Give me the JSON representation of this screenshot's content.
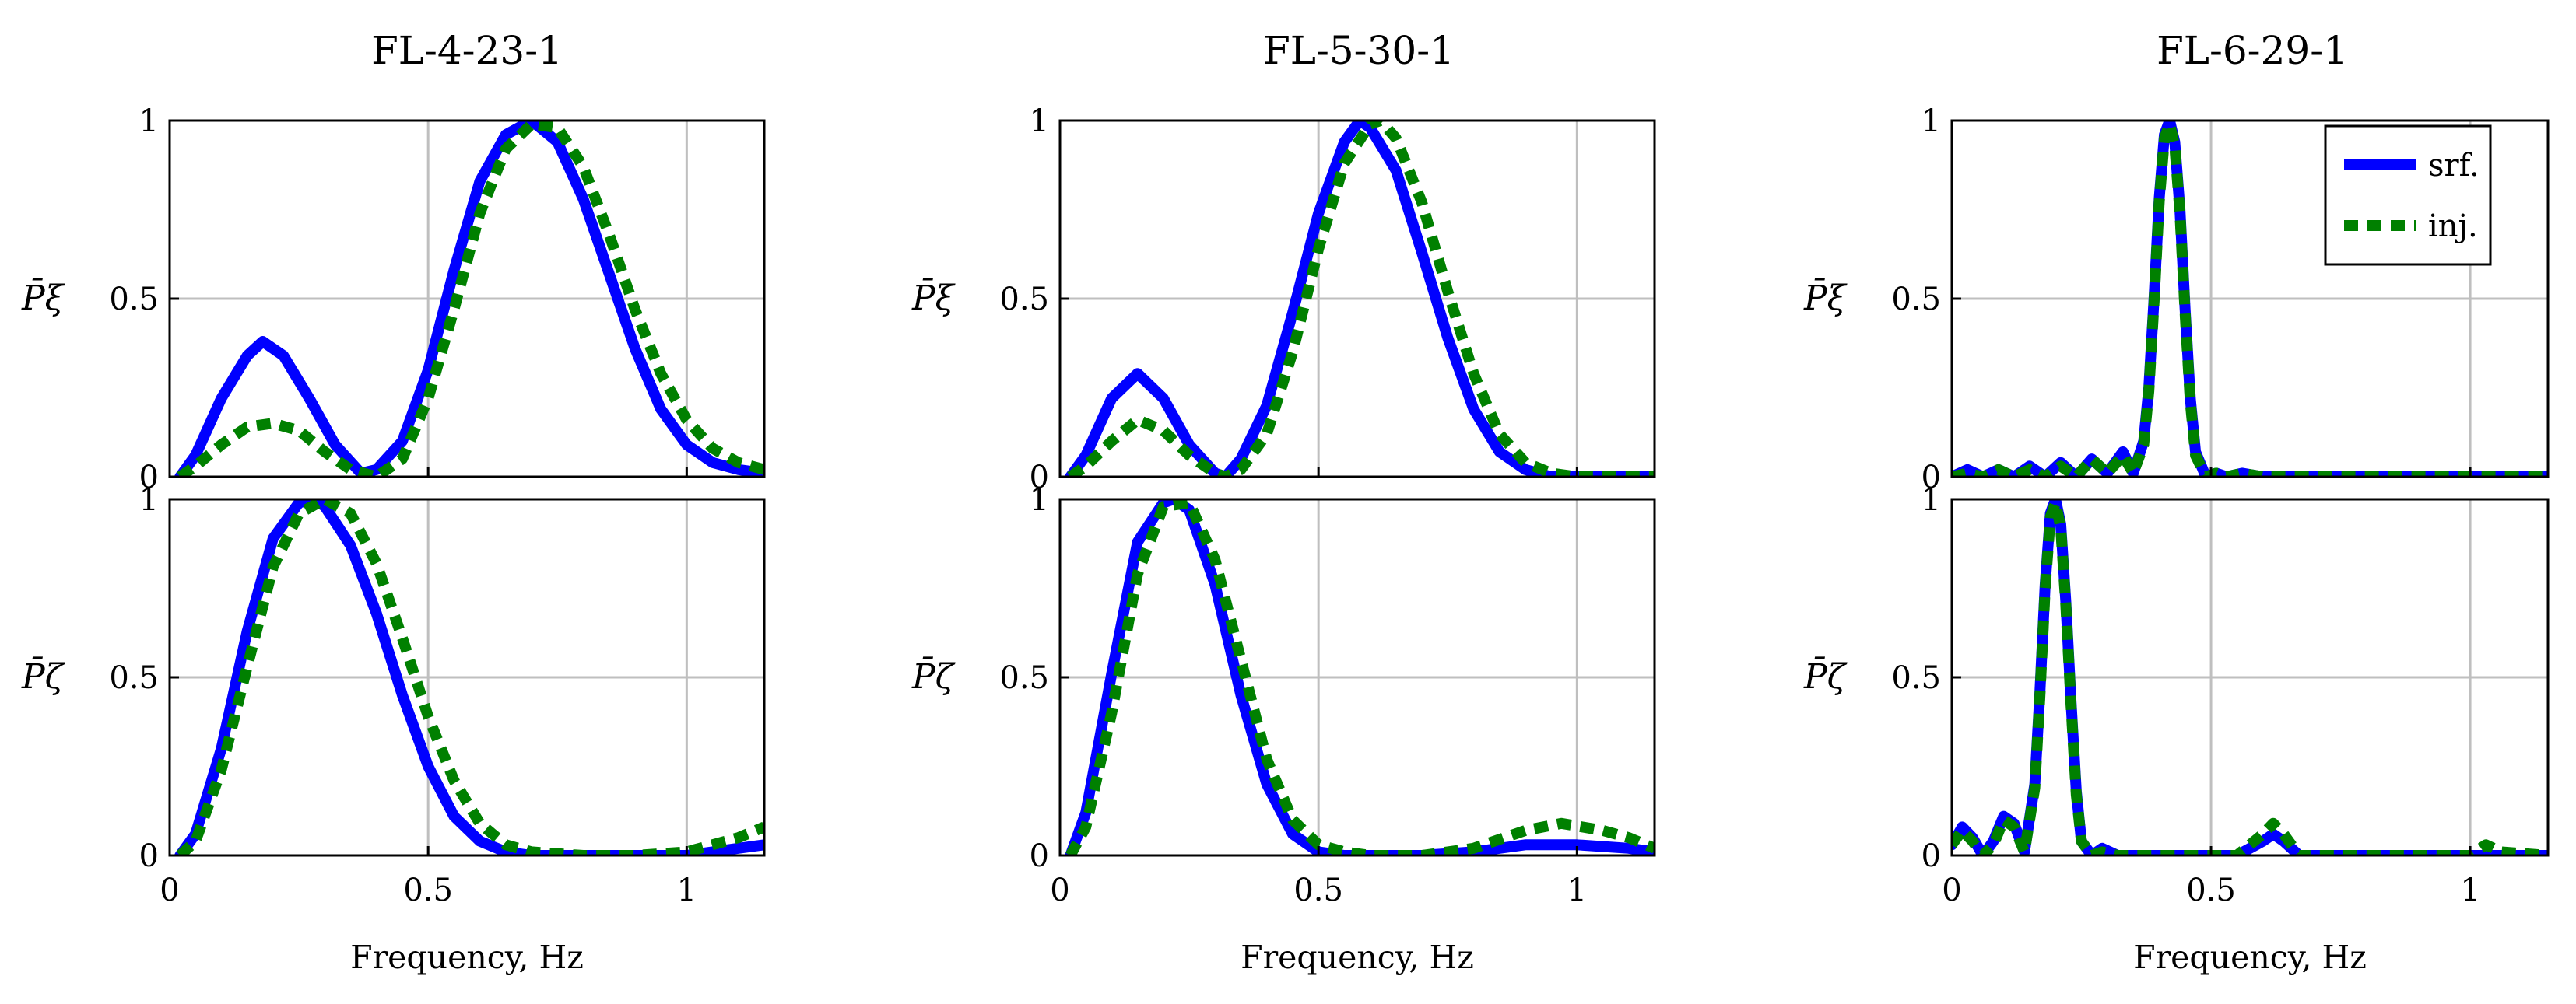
{
  "figure": {
    "column_titles": [
      "FL-4-23-1",
      "FL-5-30-1",
      "FL-6-29-1"
    ],
    "row_ylabels": [
      "P̄ξ",
      "P̄ζ"
    ],
    "xlabel": "Frequency, Hz",
    "x_ticks": [
      "0",
      "0.5",
      "1"
    ],
    "y_ticks": [
      "0",
      "0.5",
      "1"
    ],
    "legend": {
      "items": [
        "srf.",
        "inj."
      ],
      "placement": "top-right of FL-6-29-1 upper panel"
    },
    "colors": {
      "srf": "#0000ff",
      "inj": "#008000",
      "grid": "#bfbfbf"
    }
  },
  "chart_data": [
    {
      "type": "line",
      "panel": "FL-4-23-1 upper",
      "title": "FL-4-23-1",
      "xlabel": "",
      "ylabel": "P̄ξ",
      "xlim": [
        0,
        1.15
      ],
      "ylim": [
        0,
        1
      ],
      "grid": true,
      "series": [
        {
          "name": "srf.",
          "x": [
            0.02,
            0.05,
            0.1,
            0.15,
            0.18,
            0.22,
            0.27,
            0.32,
            0.37,
            0.4,
            0.45,
            0.5,
            0.55,
            0.6,
            0.65,
            0.7,
            0.75,
            0.8,
            0.85,
            0.9,
            0.95,
            1.0,
            1.05,
            1.1,
            1.15
          ],
          "y": [
            0.0,
            0.06,
            0.22,
            0.34,
            0.38,
            0.34,
            0.22,
            0.09,
            0.01,
            0.02,
            0.1,
            0.3,
            0.58,
            0.83,
            0.96,
            1.0,
            0.94,
            0.78,
            0.57,
            0.36,
            0.19,
            0.09,
            0.04,
            0.02,
            0.01
          ]
        },
        {
          "name": "inj.",
          "x": [
            0.02,
            0.05,
            0.1,
            0.15,
            0.2,
            0.25,
            0.3,
            0.35,
            0.4,
            0.45,
            0.5,
            0.55,
            0.6,
            0.65,
            0.7,
            0.75,
            0.8,
            0.85,
            0.9,
            0.95,
            1.0,
            1.05,
            1.1,
            1.15
          ],
          "y": [
            0.0,
            0.03,
            0.09,
            0.14,
            0.15,
            0.13,
            0.07,
            0.02,
            0.0,
            0.05,
            0.22,
            0.47,
            0.74,
            0.92,
            0.99,
            0.98,
            0.87,
            0.68,
            0.47,
            0.29,
            0.16,
            0.08,
            0.04,
            0.02
          ]
        }
      ]
    },
    {
      "type": "line",
      "panel": "FL-4-23-1 lower",
      "xlabel": "Frequency, Hz",
      "ylabel": "P̄ζ",
      "xlim": [
        0,
        1.15
      ],
      "ylim": [
        0,
        1
      ],
      "grid": true,
      "series": [
        {
          "name": "srf.",
          "x": [
            0.02,
            0.05,
            0.1,
            0.15,
            0.2,
            0.25,
            0.28,
            0.3,
            0.35,
            0.4,
            0.45,
            0.5,
            0.55,
            0.6,
            0.65,
            0.7,
            0.8,
            0.9,
            1.0,
            1.05,
            1.1,
            1.15
          ],
          "y": [
            0.0,
            0.06,
            0.3,
            0.63,
            0.89,
            0.99,
            1.0,
            0.98,
            0.87,
            0.68,
            0.45,
            0.25,
            0.11,
            0.04,
            0.01,
            0.0,
            0.0,
            0.0,
            0.0,
            0.01,
            0.02,
            0.03
          ]
        },
        {
          "name": "inj.",
          "x": [
            0.02,
            0.05,
            0.1,
            0.15,
            0.2,
            0.25,
            0.3,
            0.35,
            0.4,
            0.45,
            0.5,
            0.55,
            0.6,
            0.65,
            0.7,
            0.8,
            0.9,
            1.0,
            1.05,
            1.1,
            1.15
          ],
          "y": [
            0.0,
            0.04,
            0.24,
            0.53,
            0.81,
            0.96,
            1.0,
            0.96,
            0.82,
            0.61,
            0.39,
            0.21,
            0.09,
            0.03,
            0.01,
            0.0,
            0.0,
            0.01,
            0.03,
            0.05,
            0.08
          ]
        }
      ]
    },
    {
      "type": "line",
      "panel": "FL-5-30-1 upper",
      "title": "FL-5-30-1",
      "xlabel": "",
      "ylabel": "P̄ξ",
      "xlim": [
        0,
        1.15
      ],
      "ylim": [
        0,
        1
      ],
      "grid": true,
      "series": [
        {
          "name": "srf.",
          "x": [
            0.02,
            0.05,
            0.1,
            0.15,
            0.2,
            0.25,
            0.3,
            0.32,
            0.35,
            0.4,
            0.45,
            0.5,
            0.55,
            0.58,
            0.6,
            0.65,
            0.7,
            0.75,
            0.8,
            0.85,
            0.9,
            0.95,
            1.0,
            1.15
          ],
          "y": [
            0.0,
            0.06,
            0.22,
            0.29,
            0.22,
            0.09,
            0.01,
            0.0,
            0.05,
            0.2,
            0.46,
            0.74,
            0.94,
            1.0,
            0.98,
            0.86,
            0.63,
            0.39,
            0.19,
            0.07,
            0.02,
            0.0,
            0.0,
            0.0
          ]
        },
        {
          "name": "inj.",
          "x": [
            0.02,
            0.05,
            0.1,
            0.15,
            0.2,
            0.25,
            0.3,
            0.32,
            0.35,
            0.4,
            0.45,
            0.5,
            0.55,
            0.6,
            0.62,
            0.65,
            0.7,
            0.75,
            0.8,
            0.85,
            0.9,
            0.95,
            1.0,
            1.15
          ],
          "y": [
            0.0,
            0.03,
            0.1,
            0.16,
            0.13,
            0.06,
            0.01,
            0.0,
            0.02,
            0.12,
            0.35,
            0.64,
            0.88,
            0.99,
            1.0,
            0.95,
            0.77,
            0.52,
            0.29,
            0.12,
            0.04,
            0.01,
            0.0,
            0.0
          ]
        }
      ]
    },
    {
      "type": "line",
      "panel": "FL-5-30-1 lower",
      "xlabel": "Frequency, Hz",
      "ylabel": "P̄ζ",
      "xlim": [
        0,
        1.15
      ],
      "ylim": [
        0,
        1
      ],
      "grid": true,
      "series": [
        {
          "name": "srf.",
          "x": [
            0.02,
            0.05,
            0.1,
            0.15,
            0.2,
            0.22,
            0.25,
            0.3,
            0.35,
            0.4,
            0.45,
            0.5,
            0.55,
            0.6,
            0.7,
            0.8,
            0.9,
            1.0,
            1.1,
            1.15
          ],
          "y": [
            0.0,
            0.12,
            0.51,
            0.88,
            0.99,
            1.0,
            0.97,
            0.76,
            0.45,
            0.2,
            0.06,
            0.01,
            0.0,
            0.0,
            0.0,
            0.01,
            0.03,
            0.03,
            0.02,
            0.01
          ]
        },
        {
          "name": "inj.",
          "x": [
            0.02,
            0.05,
            0.1,
            0.15,
            0.2,
            0.25,
            0.3,
            0.35,
            0.4,
            0.45,
            0.5,
            0.55,
            0.6,
            0.7,
            0.8,
            0.9,
            0.97,
            1.05,
            1.1,
            1.15
          ],
          "y": [
            0.0,
            0.08,
            0.4,
            0.79,
            0.98,
            0.99,
            0.83,
            0.55,
            0.27,
            0.1,
            0.03,
            0.01,
            0.0,
            0.0,
            0.02,
            0.07,
            0.09,
            0.07,
            0.05,
            0.02
          ]
        }
      ]
    },
    {
      "type": "line",
      "panel": "FL-6-29-1 upper",
      "title": "FL-6-29-1",
      "xlabel": "",
      "ylabel": "P̄ξ",
      "xlim": [
        0,
        1.15
      ],
      "ylim": [
        0,
        1
      ],
      "grid": true,
      "legend": "top-right",
      "series": [
        {
          "name": "srf.",
          "x": [
            0.0,
            0.03,
            0.06,
            0.09,
            0.12,
            0.15,
            0.18,
            0.21,
            0.24,
            0.27,
            0.3,
            0.33,
            0.35,
            0.37,
            0.38,
            0.39,
            0.4,
            0.41,
            0.42,
            0.43,
            0.44,
            0.45,
            0.46,
            0.47,
            0.49,
            0.51,
            0.53,
            0.56,
            0.6,
            0.8,
            1.0,
            1.15
          ],
          "y": [
            0.0,
            0.02,
            0.0,
            0.02,
            0.0,
            0.03,
            0.0,
            0.04,
            0.0,
            0.05,
            0.01,
            0.07,
            0.01,
            0.1,
            0.25,
            0.5,
            0.78,
            0.96,
            1.0,
            0.94,
            0.75,
            0.47,
            0.22,
            0.07,
            0.0,
            0.01,
            0.0,
            0.01,
            0.0,
            0.0,
            0.0,
            0.0
          ]
        },
        {
          "name": "inj.",
          "x": [
            0.0,
            0.03,
            0.06,
            0.09,
            0.12,
            0.15,
            0.18,
            0.21,
            0.24,
            0.27,
            0.3,
            0.33,
            0.35,
            0.37,
            0.38,
            0.39,
            0.4,
            0.41,
            0.42,
            0.43,
            0.44,
            0.45,
            0.46,
            0.47,
            0.49,
            0.51,
            0.53,
            0.56,
            0.6,
            0.8,
            1.0,
            1.15
          ],
          "y": [
            0.0,
            0.01,
            0.0,
            0.02,
            0.0,
            0.02,
            0.0,
            0.03,
            0.0,
            0.05,
            0.01,
            0.06,
            0.01,
            0.09,
            0.24,
            0.49,
            0.77,
            0.95,
            0.99,
            0.93,
            0.74,
            0.46,
            0.21,
            0.06,
            0.0,
            0.01,
            0.0,
            0.01,
            0.0,
            0.0,
            0.0,
            0.0
          ]
        }
      ]
    },
    {
      "type": "line",
      "panel": "FL-6-29-1 lower",
      "xlabel": "Frequency, Hz",
      "ylabel": "P̄ζ",
      "xlim": [
        0,
        1.15
      ],
      "ylim": [
        0,
        1
      ],
      "grid": true,
      "series": [
        {
          "name": "srf.",
          "x": [
            0.0,
            0.02,
            0.04,
            0.06,
            0.08,
            0.1,
            0.12,
            0.14,
            0.16,
            0.17,
            0.18,
            0.19,
            0.2,
            0.21,
            0.22,
            0.23,
            0.24,
            0.25,
            0.27,
            0.29,
            0.32,
            0.4,
            0.55,
            0.6,
            0.62,
            0.64,
            0.67,
            0.8,
            1.0,
            1.15
          ],
          "y": [
            0.03,
            0.08,
            0.05,
            0.0,
            0.04,
            0.11,
            0.09,
            0.01,
            0.2,
            0.46,
            0.76,
            0.96,
            1.0,
            0.93,
            0.71,
            0.43,
            0.18,
            0.04,
            0.0,
            0.02,
            0.0,
            0.0,
            0.0,
            0.04,
            0.06,
            0.04,
            0.0,
            0.0,
            0.0,
            0.0
          ]
        },
        {
          "name": "inj.",
          "x": [
            0.0,
            0.02,
            0.04,
            0.06,
            0.08,
            0.1,
            0.12,
            0.14,
            0.16,
            0.17,
            0.18,
            0.19,
            0.2,
            0.21,
            0.22,
            0.23,
            0.24,
            0.25,
            0.27,
            0.29,
            0.32,
            0.4,
            0.55,
            0.6,
            0.62,
            0.64,
            0.67,
            0.8,
            1.0,
            1.03,
            1.06,
            1.15
          ],
          "y": [
            0.03,
            0.07,
            0.04,
            0.0,
            0.03,
            0.1,
            0.08,
            0.01,
            0.19,
            0.45,
            0.75,
            0.95,
            0.99,
            0.92,
            0.7,
            0.42,
            0.17,
            0.04,
            0.0,
            0.01,
            0.0,
            0.0,
            0.0,
            0.06,
            0.09,
            0.06,
            0.0,
            0.0,
            0.0,
            0.03,
            0.01,
            0.0
          ]
        }
      ]
    }
  ]
}
